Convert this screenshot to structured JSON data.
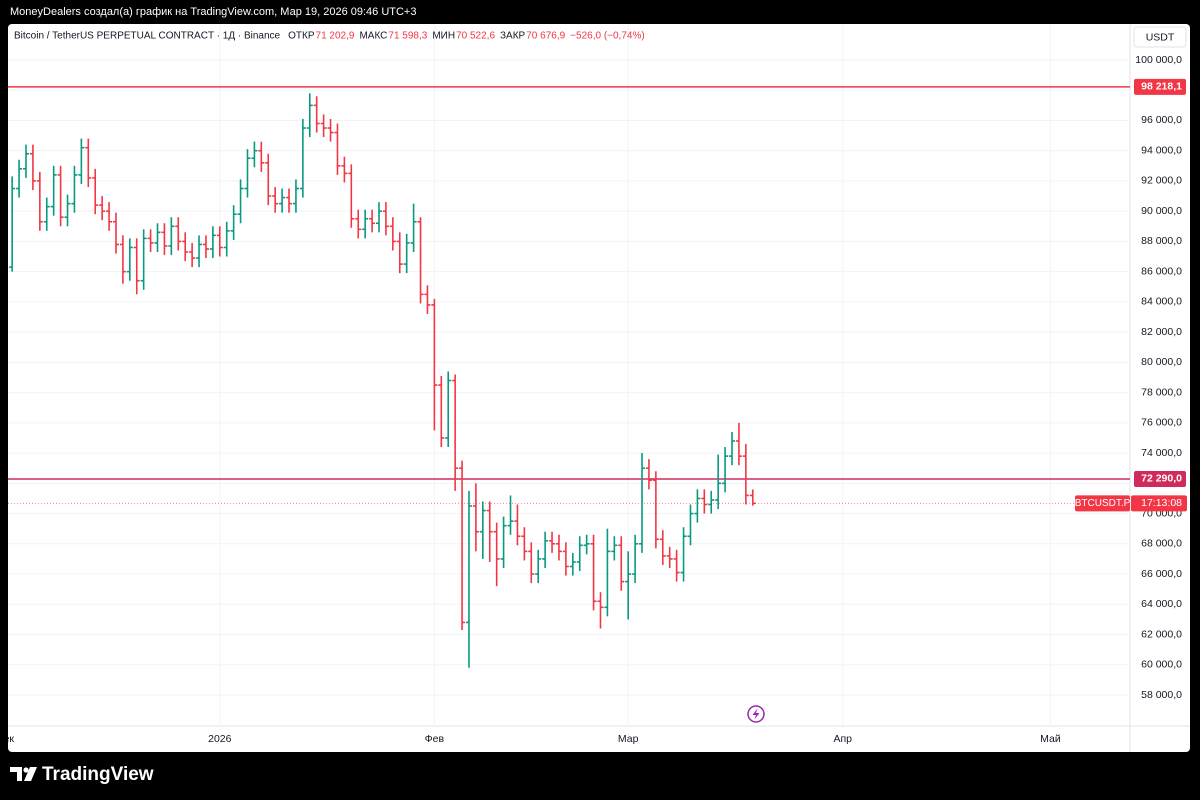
{
  "chart_data": {
    "type": "ohlc",
    "header": "MoneyDealers создал(а) график на TradingView.com, Мар 19, 2026 09:46 UTC+3",
    "symbol": "Bitcoin / TetherUS PERPETUAL CONTRACT · 1Д · Binance",
    "legend": [
      {
        "name": "ОТКР",
        "value": {
          "value": 71202.9,
          "label": "71 202,9"
        }
      },
      {
        "name": "МАКС",
        "value": {
          "value": 71598.3,
          "label": "71 598,3"
        }
      },
      {
        "name": "МИН",
        "value": {
          "value": 70522.6,
          "label": "70 522,6"
        }
      },
      {
        "name": "ЗАКР",
        "value": {
          "value": 70676.9,
          "label": "70 676,9"
        }
      }
    ],
    "change": "−526,0 (−0,74%)",
    "currency": "USDT",
    "symbol_tag": "BTCUSDT.P",
    "countdown": "17:13:08",
    "brand": "TradingView",
    "up_color": "#089981",
    "down_color": "#f23645",
    "open": [
      86300,
      91500,
      92800,
      93800,
      92000,
      89300,
      90300,
      92400,
      89600,
      90500,
      92400,
      94200,
      92200,
      90400,
      90000,
      89300,
      87800,
      86000,
      87600,
      85400,
      88200,
      87900,
      88600,
      87700,
      89000,
      88000,
      87300,
      86900,
      87800,
      87500,
      88400,
      87600,
      88700,
      89800,
      91500,
      93500,
      94000,
      93200,
      91000,
      90500,
      90900,
      90500,
      91500,
      95500,
      97000,
      95800,
      95500,
      95200,
      93000,
      92500,
      89500,
      88800,
      89500,
      89200,
      90000,
      89000,
      88000,
      86500,
      87900,
      89300,
      84500,
      83800,
      78500,
      75000,
      78800,
      73000,
      62800,
      70500,
      68800,
      70200,
      68800,
      67000,
      69200,
      69500,
      68500,
      67500,
      66000,
      67000,
      68200,
      68000,
      67500,
      66500,
      66800,
      67900,
      68000,
      64200,
      63800,
      67500,
      67900,
      65500,
      66000,
      68000,
      73000,
      72200,
      68300,
      67200,
      67000,
      66100,
      68500,
      70000,
      71000,
      70600,
      70900,
      72000,
      73800,
      74800,
      73800,
      71200
    ],
    "high": [
      92300,
      93400,
      94400,
      94400,
      92600,
      90900,
      93000,
      93000,
      91100,
      93000,
      94800,
      94800,
      92800,
      91000,
      90600,
      89900,
      88400,
      88200,
      88200,
      88800,
      88800,
      89200,
      89200,
      89600,
      89600,
      88600,
      87900,
      88400,
      88400,
      89000,
      89000,
      89300,
      90400,
      92100,
      94100,
      94600,
      94600,
      93800,
      91600,
      91500,
      91500,
      92100,
      96100,
      97800,
      97600,
      96400,
      96100,
      95800,
      93600,
      93100,
      90100,
      90100,
      90100,
      90600,
      90600,
      89600,
      88600,
      88500,
      90500,
      89600,
      85100,
      84200,
      79100,
      79400,
      79200,
      73500,
      71500,
      72000,
      70800,
      70800,
      69400,
      69800,
      71200,
      70600,
      69100,
      68100,
      67600,
      68800,
      68800,
      68600,
      68100,
      67400,
      68500,
      68600,
      68600,
      64800,
      69000,
      68500,
      68500,
      67500,
      68600,
      74000,
      73600,
      72800,
      68900,
      67800,
      67600,
      69100,
      70600,
      71600,
      71600,
      71500,
      73900,
      74400,
      75400,
      76000,
      74600,
      71598.3
    ],
    "low": [
      86000,
      90900,
      92200,
      91400,
      88700,
      88700,
      89700,
      89000,
      89000,
      89900,
      91800,
      91600,
      89800,
      89400,
      88700,
      87200,
      85200,
      85400,
      84500,
      84800,
      87300,
      87300,
      87100,
      87100,
      87400,
      86700,
      86300,
      86300,
      86900,
      86900,
      87000,
      87000,
      88100,
      89200,
      90900,
      92900,
      92600,
      90400,
      89900,
      89900,
      89900,
      89900,
      90900,
      94900,
      95200,
      94900,
      94600,
      92400,
      91900,
      88900,
      88200,
      88200,
      88600,
      88600,
      88400,
      87400,
      85900,
      85900,
      87300,
      83900,
      83200,
      75500,
      74400,
      74400,
      71500,
      62300,
      59800,
      67500,
      67000,
      66800,
      65200,
      66400,
      68600,
      67900,
      66900,
      65400,
      65400,
      66400,
      67400,
      66900,
      65900,
      65900,
      66200,
      67300,
      63600,
      62400,
      63200,
      66900,
      64900,
      63000,
      65400,
      67400,
      71600,
      67700,
      66600,
      66400,
      65500,
      65500,
      67900,
      69400,
      70000,
      70000,
      70300,
      71400,
      73200,
      73200,
      70600,
      70522.6
    ],
    "close": [
      91500,
      92800,
      93800,
      92000,
      89300,
      90300,
      92400,
      89600,
      90500,
      92400,
      94200,
      92200,
      90400,
      90000,
      89300,
      87800,
      86000,
      87600,
      85400,
      88200,
      87900,
      88600,
      87700,
      89000,
      88000,
      87300,
      86900,
      87800,
      87500,
      88400,
      87600,
      88700,
      89800,
      91500,
      93500,
      94000,
      93200,
      91000,
      90500,
      90900,
      90500,
      91500,
      95500,
      97000,
      95800,
      95500,
      95200,
      93000,
      92500,
      89500,
      88800,
      89500,
      89200,
      90000,
      89000,
      88000,
      86500,
      87900,
      89300,
      84500,
      83800,
      78500,
      75000,
      78800,
      73000,
      62800,
      70500,
      68800,
      70200,
      68800,
      67000,
      69200,
      69500,
      68500,
      67500,
      66000,
      67000,
      68200,
      68000,
      67500,
      66500,
      66800,
      67900,
      68000,
      64200,
      63800,
      67500,
      67900,
      65500,
      66000,
      68000,
      73000,
      72200,
      68300,
      67200,
      67000,
      66100,
      68500,
      70000,
      71000,
      70600,
      70900,
      72000,
      73800,
      74800,
      73800,
      71200,
      70676.9
    ],
    "hlines": [
      {
        "value": 98218.1,
        "label": "98 218,1",
        "color": "#f23645"
      },
      {
        "value": 72290.0,
        "label": "72 290,0",
        "color": "#d12a5c"
      }
    ],
    "xlim": [
      -0.6,
      161.5
    ],
    "xticks": [
      {
        "value": -1,
        "label": "Дек"
      },
      {
        "value": 30,
        "label": "2026"
      },
      {
        "value": 61,
        "label": "Фев"
      },
      {
        "value": 89,
        "label": "Мар"
      },
      {
        "value": 120,
        "label": "Апр"
      },
      {
        "value": 150,
        "label": "Май"
      }
    ],
    "ylim": [
      55950,
      102380
    ],
    "yticks": [
      {
        "value": 58000,
        "label": "58 000,0"
      },
      {
        "value": 60000,
        "label": "60 000,0"
      },
      {
        "value": 62000,
        "label": "62 000,0"
      },
      {
        "value": 64000,
        "label": "64 000,0"
      },
      {
        "value": 66000,
        "label": "66 000,0"
      },
      {
        "value": 68000,
        "label": "68 000,0"
      },
      {
        "value": 70000,
        "label": "70 000,0"
      },
      {
        "value": 72000,
        "label": "72 000,0"
      },
      {
        "value": 74000,
        "label": "74 000,0"
      },
      {
        "value": 76000,
        "label": "76 000,0"
      },
      {
        "value": 78000,
        "label": "78 000,0"
      },
      {
        "value": 80000,
        "label": "80 000,0"
      },
      {
        "value": 82000,
        "label": "82 000,0"
      },
      {
        "value": 84000,
        "label": "84 000,0"
      },
      {
        "value": 86000,
        "label": "86 000,0"
      },
      {
        "value": 88000,
        "label": "88 000,0"
      },
      {
        "value": 90000,
        "label": "90 000,0"
      },
      {
        "value": 92000,
        "label": "92 000,0"
      },
      {
        "value": 94000,
        "label": "94 000,0"
      },
      {
        "value": 96000,
        "label": "96 000,0"
      },
      {
        "value": 98000,
        "label": "98 000,0"
      },
      {
        "value": 100000,
        "label": "100 000,0"
      }
    ],
    "grid": true
  }
}
